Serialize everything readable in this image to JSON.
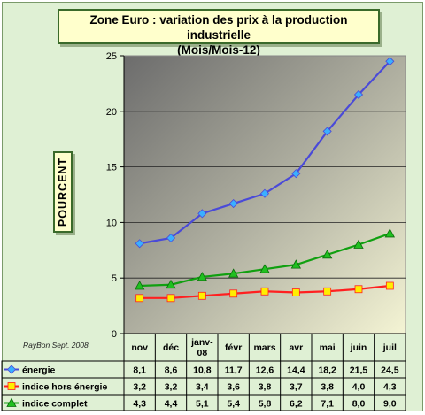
{
  "chart_data": {
    "type": "line",
    "title": [
      "Zone Euro : variation des prix à la production industrielle",
      "(Mois/Mois-12)"
    ],
    "ylabel": "POURCENT",
    "credit": "RayBon Sept. 2008",
    "ylim": [
      0,
      25
    ],
    "yticks": [
      "0",
      "5",
      "10",
      "15",
      "20",
      "25"
    ],
    "categories": [
      [
        "nov"
      ],
      [
        "déc"
      ],
      [
        "janv-",
        "08"
      ],
      [
        "févr"
      ],
      [
        "mars"
      ],
      [
        "avr"
      ],
      [
        "mai"
      ],
      [
        "juin"
      ],
      [
        "juil"
      ]
    ],
    "series": [
      {
        "name": "énergie",
        "color": "#4a4ad8",
        "marker": "diamond",
        "marker_color": "#3ab0ff",
        "values": [
          8.1,
          8.6,
          10.8,
          11.7,
          12.6,
          14.4,
          18.2,
          21.5,
          24.5
        ],
        "labels": [
          "8,1",
          "8,6",
          "10,8",
          "11,7",
          "12,6",
          "14,4",
          "18,2",
          "21,5",
          "24,5"
        ]
      },
      {
        "name": "indice hors énergie",
        "color": "#ff2020",
        "marker": "square",
        "marker_color": "#ffee00",
        "values": [
          3.2,
          3.2,
          3.4,
          3.6,
          3.8,
          3.7,
          3.8,
          4.0,
          4.3
        ],
        "labels": [
          "3,2",
          "3,2",
          "3,4",
          "3,6",
          "3,8",
          "3,7",
          "3,8",
          "4,0",
          "4,3"
        ]
      },
      {
        "name": "indice complet",
        "color": "#10a010",
        "marker": "triangle",
        "marker_color": "#20c020",
        "values": [
          4.3,
          4.4,
          5.1,
          5.4,
          5.8,
          6.2,
          7.1,
          8.0,
          9.0
        ],
        "labels": [
          "4,3",
          "4,4",
          "5,1",
          "5,4",
          "5,8",
          "6,2",
          "7,1",
          "8,0",
          "9,0"
        ]
      }
    ],
    "grid": true,
    "legend": "data-table"
  }
}
